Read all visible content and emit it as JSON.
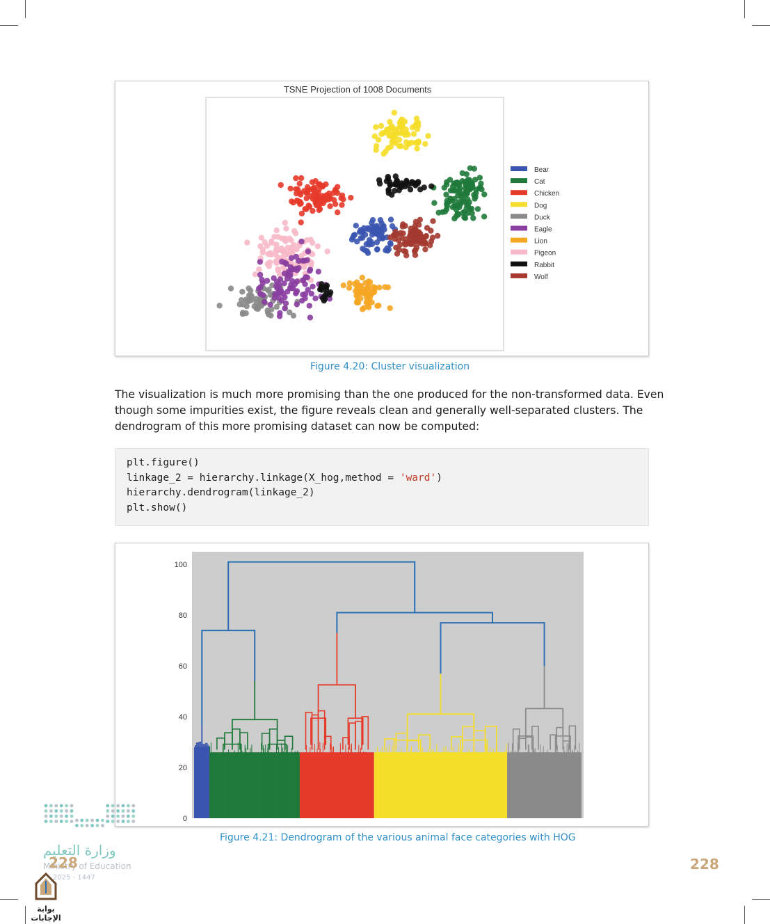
{
  "figure_1": {
    "chart_title": "TSNE Projection of 1008 Documents",
    "legend": [
      {
        "label": "Bear",
        "color": "#3a55b0"
      },
      {
        "label": "Cat",
        "color": "#1f7a3b"
      },
      {
        "label": "Chicken",
        "color": "#e63a2a"
      },
      {
        "label": "Dog",
        "color": "#f5de2a"
      },
      {
        "label": "Duck",
        "color": "#8a8a8a"
      },
      {
        "label": "Eagle",
        "color": "#8a3ea0"
      },
      {
        "label": "Lion",
        "color": "#f5a623"
      },
      {
        "label": "Pigeon",
        "color": "#f7b9c8"
      },
      {
        "label": "Rabbit",
        "color": "#111111"
      },
      {
        "label": "Wolf",
        "color": "#a3392f"
      }
    ],
    "caption": "Figure 4.20: Cluster visualization"
  },
  "paragraph": {
    "line1": "The visualization is much more promising than the one produced for the non-transformed data. Even",
    "line2": "though some impurities exist, the figure reveals clean and generally well-separated clusters. The",
    "line3": "dendrogram of this more promising dataset can now be computed:"
  },
  "code": {
    "line1": "plt.figure()",
    "line2_a": "linkage_2 = hierarchy.linkage(X_hog,method = ",
    "line2_str": "'ward'",
    "line2_b": ")",
    "line3": "hierarchy.dendrogram(linkage_2)",
    "line4": "plt.show()"
  },
  "figure_2": {
    "caption": "Figure 4.21: Dendrogram of the various animal face categories with HOG",
    "y_ticks": [
      "0",
      "20",
      "40",
      "60",
      "80",
      "100"
    ]
  },
  "chart_data": [
    {
      "type": "scatter",
      "title": "TSNE Projection of 1008 Documents",
      "series": [
        {
          "name": "Bear",
          "color": "#3a55b0"
        },
        {
          "name": "Cat",
          "color": "#1f7a3b"
        },
        {
          "name": "Chicken",
          "color": "#e63a2a"
        },
        {
          "name": "Dog",
          "color": "#f5de2a"
        },
        {
          "name": "Duck",
          "color": "#8a8a8a"
        },
        {
          "name": "Eagle",
          "color": "#8a3ea0"
        },
        {
          "name": "Lion",
          "color": "#f5a623"
        },
        {
          "name": "Pigeon",
          "color": "#f7b9c8"
        },
        {
          "name": "Rabbit",
          "color": "#111111"
        },
        {
          "name": "Wolf",
          "color": "#a3392f"
        }
      ],
      "legend_position": "right"
    },
    {
      "type": "dendrogram",
      "ylim": [
        0,
        105
      ],
      "y_ticks": [
        0,
        20,
        40,
        60,
        80,
        100
      ],
      "clusters": [
        {
          "color": "#3a55b0",
          "leaf_share": 0.04,
          "merge_height": 37
        },
        {
          "color": "#1f7a3b",
          "leaf_share": 0.23,
          "merge_height": 54
        },
        {
          "color": "#e63a2a",
          "leaf_share": 0.19,
          "merge_height": 73
        },
        {
          "color": "#f5de2a",
          "leaf_share": 0.34,
          "merge_height": 57
        },
        {
          "color": "#8a8a8a",
          "leaf_share": 0.19,
          "merge_height": 60
        }
      ],
      "upper_links": [
        {
          "color": "#2a6fb3",
          "height": 101
        },
        {
          "color": "#2a6fb3",
          "height": 74
        },
        {
          "color": "#2a6fb3",
          "height": 81
        },
        {
          "color": "#2a6fb3",
          "height": 77
        }
      ]
    }
  ],
  "page": {
    "number": "228",
    "ministry_ar": "وزارة التعليم",
    "ministry_en": "Ministry of Education",
    "ministry_year": "2025 - 1447",
    "logo_text": "بوابة الإجابات"
  }
}
